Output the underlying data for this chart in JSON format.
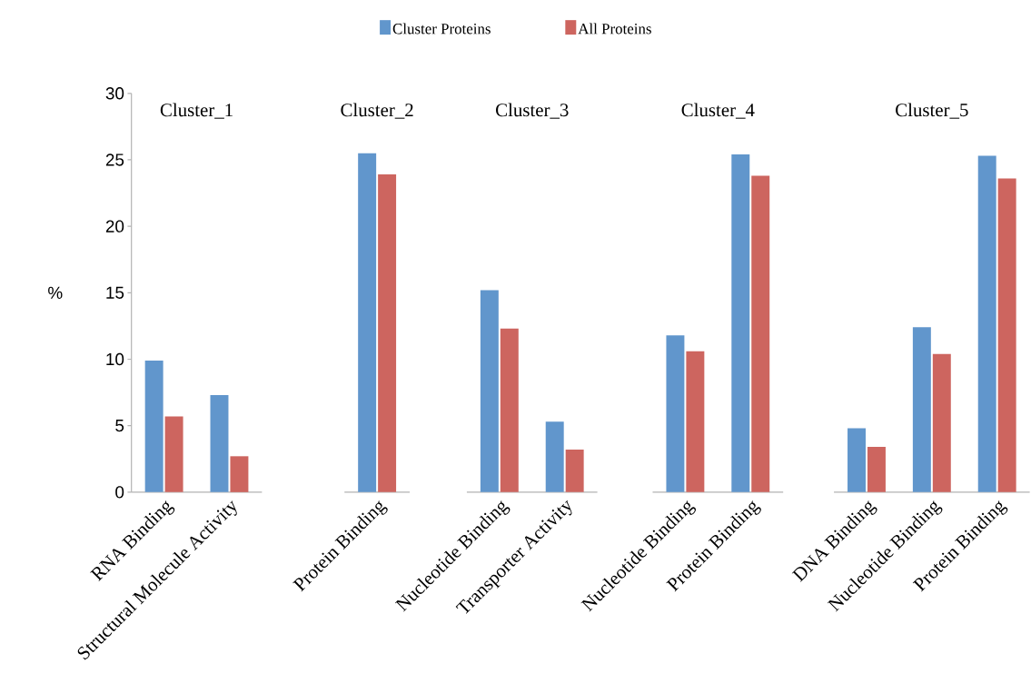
{
  "chart_data": [
    {
      "type": "bar",
      "title": "Cluster_1",
      "ylabel": "%",
      "categories": [
        "RNA Binding",
        "Structural Molecule Activity"
      ],
      "ylim": [
        0,
        30
      ],
      "yticks": [
        0,
        5,
        10,
        15,
        20,
        25,
        30
      ],
      "legend": "top",
      "series": [
        {
          "name": "Cluster Proteins",
          "color": "#6196cc",
          "values": [
            9.9,
            7.3
          ]
        },
        {
          "name": "All Proteins",
          "color": "#cd655f",
          "values": [
            5.7,
            2.7
          ]
        }
      ]
    },
    {
      "type": "bar",
      "title": "Cluster_2",
      "categories": [
        "Protein Binding"
      ],
      "ylim": [
        0,
        30
      ],
      "tick_labels": "x",
      "series": [
        {
          "color": "#6196cc",
          "values": [
            25.5
          ]
        },
        {
          "color": "#cd655f",
          "values": [
            23.9
          ]
        }
      ]
    },
    {
      "type": "bar",
      "title": "Cluster_3",
      "categories": [
        "Nucleotide Binding",
        "Transporter Activity"
      ],
      "ylim": [
        0,
        30
      ],
      "tick_labels": "x",
      "series": [
        {
          "color": "#6196cc",
          "values": [
            15.2,
            5.3
          ]
        },
        {
          "color": "#cd655f",
          "values": [
            12.3,
            3.2
          ]
        }
      ]
    },
    {
      "type": "bar",
      "title": "Cluster_4",
      "categories": [
        "Nucleotide Binding",
        "Protein Binding"
      ],
      "ylim": [
        0,
        30
      ],
      "tick_labels": "x",
      "series": [
        {
          "color": "#6196cc",
          "values": [
            11.8,
            25.4
          ]
        },
        {
          "color": "#cd655f",
          "values": [
            10.6,
            23.8
          ]
        }
      ]
    },
    {
      "type": "bar",
      "title": "Cluster_5",
      "categories": [
        "DNA Binding",
        "Nucleotide Binding",
        "Protein Binding"
      ],
      "ylim": [
        0,
        30
      ],
      "tick_labels": "x",
      "series": [
        {
          "color": "#6196cc",
          "values": [
            4.8,
            12.4,
            25.3
          ]
        },
        {
          "color": "#cd655f",
          "values": [
            3.4,
            10.4,
            23.6
          ]
        }
      ]
    }
  ]
}
